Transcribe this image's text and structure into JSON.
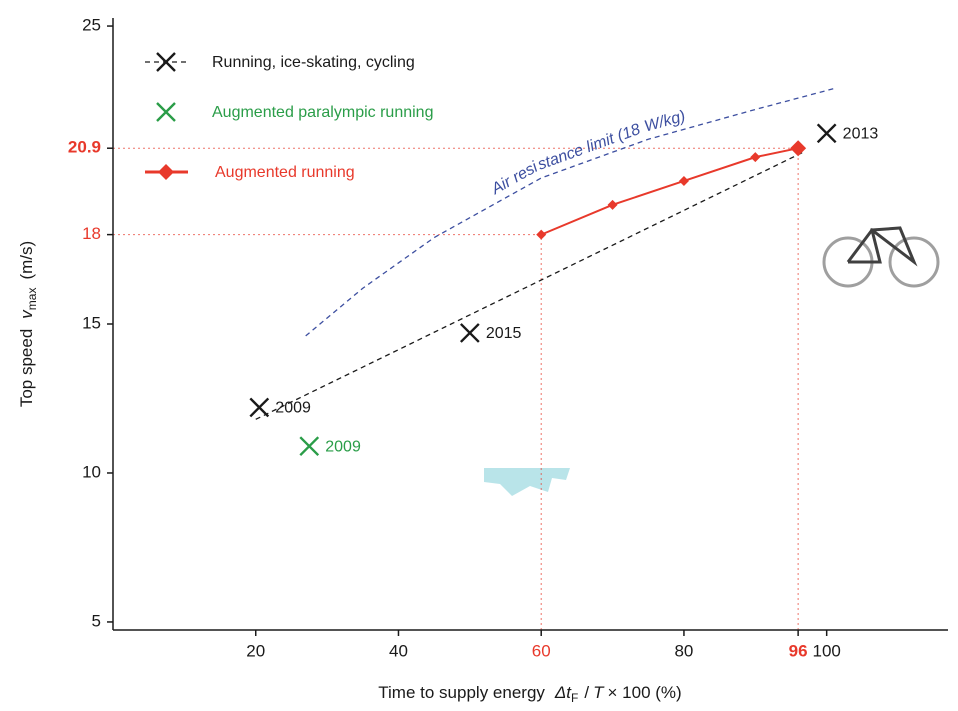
{
  "chart_data": {
    "type": "line",
    "xlabel": [
      "Time to supply energy",
      "Δt",
      "F",
      "/",
      "T",
      "× 100 (%)"
    ],
    "ylabel": [
      "Top speed",
      "v",
      "max",
      "(m/s)"
    ],
    "xlim": [
      0,
      117
    ],
    "ylim": [
      4.73,
      25.27
    ],
    "xticks": [
      20,
      40,
      60,
      80,
      96,
      100
    ],
    "yticks": [
      5,
      10,
      15,
      18,
      20.9,
      25
    ],
    "reference_points": [
      {
        "x": 60,
        "y": 18,
        "bold": false
      },
      {
        "x": 96,
        "y": 20.9,
        "bold": true
      }
    ],
    "reference_color": "#e8392b",
    "series": [
      {
        "name": "Running, ice-skating, cycling",
        "color": "#1a1a1a",
        "marker": "x",
        "x": [
          20.5,
          50,
          100
        ],
        "values": [
          12.2,
          14.7,
          21.4
        ],
        "point_labels": [
          "2009",
          "2015",
          "2013"
        ],
        "trend": {
          "x": [
            20,
            97
          ],
          "y": [
            11.8,
            20.8
          ]
        }
      },
      {
        "name": "Augmented paralympic running",
        "color": "#2a9d48",
        "marker": "x",
        "x": [
          27.5
        ],
        "values": [
          10.9
        ],
        "point_labels": [
          "2009"
        ]
      },
      {
        "name": "Augmented running",
        "color": "#e8392b",
        "marker": "diamond",
        "line": true,
        "x": [
          60,
          70,
          80,
          90,
          96
        ],
        "values": [
          18,
          19,
          19.8,
          20.6,
          20.9
        ]
      }
    ],
    "curve": {
      "label": "Air resistance limit (18 W/kg)",
      "color": "#3d4fa0",
      "x": [
        27,
        35,
        45,
        60,
        75,
        90,
        101
      ],
      "y": [
        14.6,
        16.2,
        17.9,
        19.9,
        21.2,
        22.2,
        22.9
      ]
    }
  }
}
